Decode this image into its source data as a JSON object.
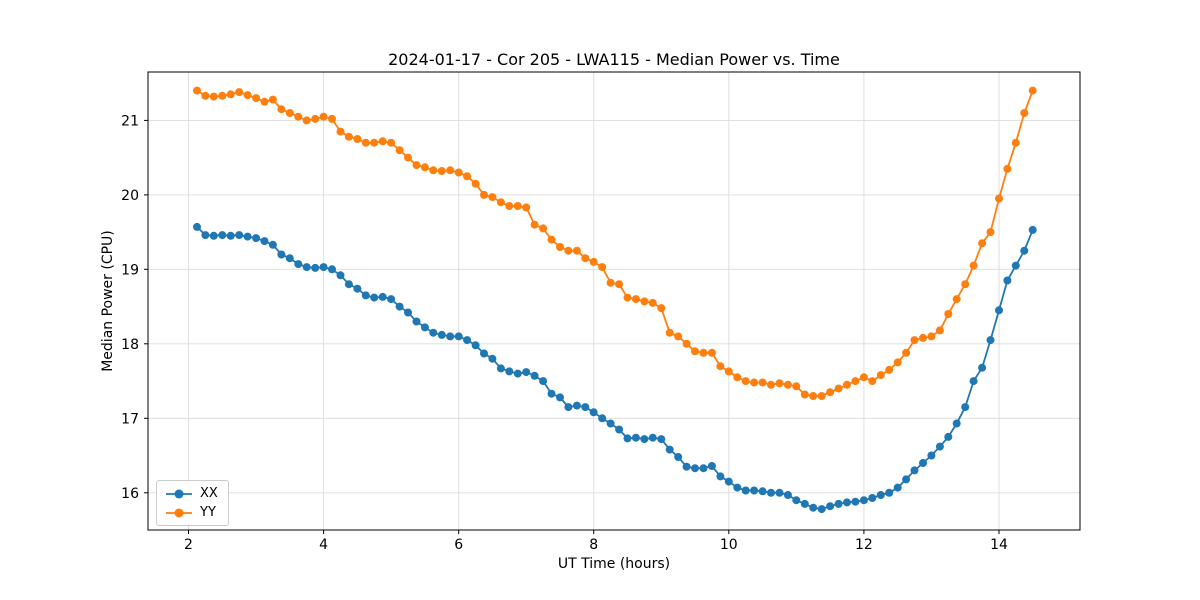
{
  "chart_data": {
    "type": "line",
    "title": "2024-01-17 - Cor 205 - LWA115 - Median Power vs. Time",
    "xlabel": "UT Time (hours)",
    "ylabel": "Median Power (CPU)",
    "xlim": [
      1.4,
      15.2
    ],
    "ylim": [
      15.5,
      21.65
    ],
    "xticks": [
      2,
      4,
      6,
      8,
      10,
      12,
      14
    ],
    "yticks": [
      16,
      17,
      18,
      19,
      20,
      21
    ],
    "grid": true,
    "legend_position": "lower left",
    "marker": "circle",
    "x": [
      2.125,
      2.25,
      2.375,
      2.5,
      2.625,
      2.75,
      2.875,
      3.0,
      3.125,
      3.25,
      3.375,
      3.5,
      3.625,
      3.75,
      3.875,
      4.0,
      4.125,
      4.25,
      4.375,
      4.5,
      4.625,
      4.75,
      4.875,
      5.0,
      5.125,
      5.25,
      5.375,
      5.5,
      5.625,
      5.75,
      5.875,
      6.0,
      6.125,
      6.25,
      6.375,
      6.5,
      6.625,
      6.75,
      6.875,
      7.0,
      7.125,
      7.25,
      7.375,
      7.5,
      7.625,
      7.75,
      7.875,
      8.0,
      8.125,
      8.25,
      8.375,
      8.5,
      8.625,
      8.75,
      8.875,
      9.0,
      9.125,
      9.25,
      9.375,
      9.5,
      9.625,
      9.75,
      9.875,
      10.0,
      10.125,
      10.25,
      10.375,
      10.5,
      10.625,
      10.75,
      10.875,
      11.0,
      11.125,
      11.25,
      11.375,
      11.5,
      11.625,
      11.75,
      11.875,
      12.0,
      12.125,
      12.25,
      12.375,
      12.5,
      12.625,
      12.75,
      12.875,
      13.0,
      13.125,
      13.25,
      13.375,
      13.5,
      13.625,
      13.75,
      13.875,
      14.0,
      14.125,
      14.25,
      14.375,
      14.5
    ],
    "series": [
      {
        "name": "XX",
        "color": "#1f77b4",
        "values": [
          19.57,
          19.46,
          19.45,
          19.46,
          19.45,
          19.46,
          19.44,
          19.42,
          19.38,
          19.33,
          19.2,
          19.15,
          19.07,
          19.03,
          19.02,
          19.03,
          19.0,
          18.92,
          18.8,
          18.74,
          18.65,
          18.62,
          18.63,
          18.6,
          18.5,
          18.42,
          18.3,
          18.22,
          18.15,
          18.12,
          18.1,
          18.1,
          18.05,
          17.98,
          17.87,
          17.8,
          17.67,
          17.63,
          17.6,
          17.62,
          17.57,
          17.5,
          17.33,
          17.28,
          17.15,
          17.17,
          17.15,
          17.08,
          17.0,
          16.93,
          16.85,
          16.73,
          16.74,
          16.72,
          16.74,
          16.72,
          16.58,
          16.48,
          16.35,
          16.33,
          16.33,
          16.36,
          16.22,
          16.15,
          16.07,
          16.03,
          16.03,
          16.02,
          16.0,
          16.0,
          15.97,
          15.9,
          15.85,
          15.8,
          15.78,
          15.82,
          15.85,
          15.87,
          15.88,
          15.9,
          15.93,
          15.97,
          16.0,
          16.07,
          16.18,
          16.3,
          16.4,
          16.5,
          16.62,
          16.75,
          16.93,
          17.15,
          17.5,
          17.68,
          18.05,
          18.45,
          18.85,
          19.05,
          19.25,
          19.53
        ]
      },
      {
        "name": "YY",
        "color": "#ff7f0e",
        "values": [
          21.4,
          21.33,
          21.32,
          21.33,
          21.35,
          21.38,
          21.34,
          21.3,
          21.25,
          21.28,
          21.15,
          21.1,
          21.05,
          21.0,
          21.02,
          21.05,
          21.02,
          20.85,
          20.78,
          20.75,
          20.7,
          20.7,
          20.72,
          20.7,
          20.6,
          20.5,
          20.4,
          20.37,
          20.33,
          20.32,
          20.33,
          20.3,
          20.25,
          20.15,
          20.0,
          19.97,
          19.9,
          19.85,
          19.85,
          19.83,
          19.6,
          19.55,
          19.4,
          19.3,
          19.25,
          19.25,
          19.15,
          19.1,
          19.03,
          18.82,
          18.8,
          18.62,
          18.6,
          18.57,
          18.55,
          18.48,
          18.15,
          18.1,
          18.0,
          17.9,
          17.88,
          17.88,
          17.7,
          17.63,
          17.55,
          17.5,
          17.48,
          17.48,
          17.45,
          17.47,
          17.45,
          17.43,
          17.32,
          17.3,
          17.3,
          17.35,
          17.4,
          17.45,
          17.5,
          17.55,
          17.5,
          17.58,
          17.65,
          17.75,
          17.88,
          18.05,
          18.08,
          18.1,
          18.18,
          18.4,
          18.6,
          18.8,
          19.05,
          19.35,
          19.5,
          19.95,
          20.35,
          20.7,
          21.1,
          21.4
        ]
      }
    ]
  }
}
